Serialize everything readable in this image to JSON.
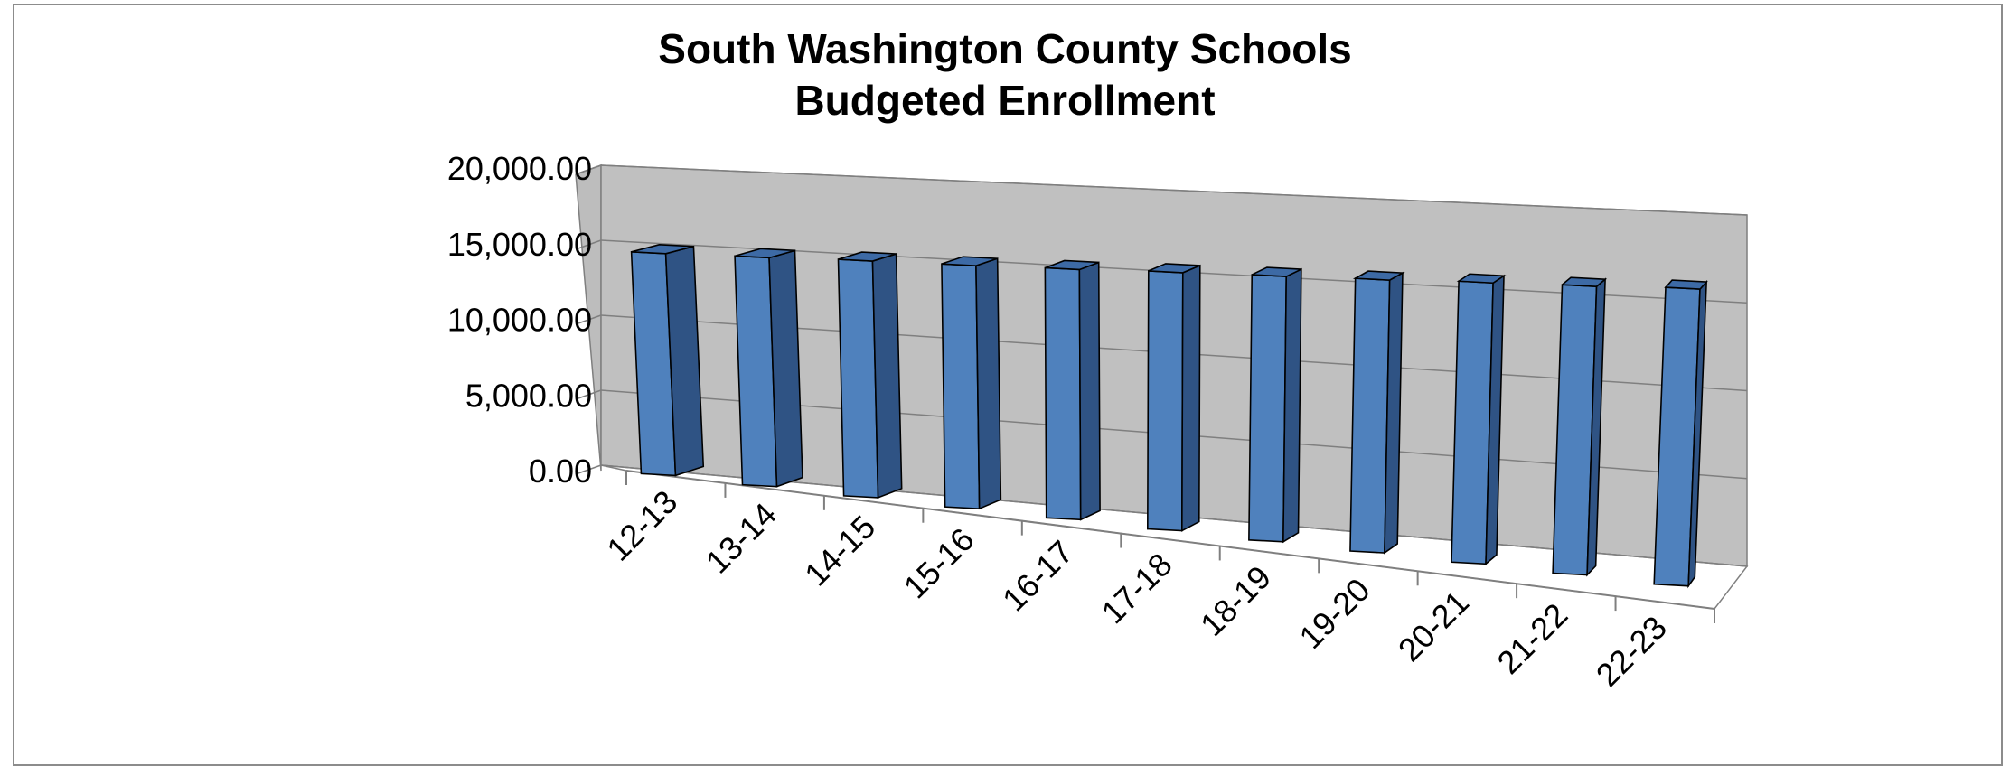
{
  "chart_data": {
    "type": "bar",
    "style": "3d-column",
    "title": [
      "South Washington County Schools",
      "Budgeted Enrollment"
    ],
    "xlabel": "",
    "ylabel": "",
    "categories": [
      "12-13",
      "13-14",
      "14-15",
      "15-16",
      "16-17",
      "17-18",
      "18-19",
      "19-20",
      "20-21",
      "21-22",
      "22-23"
    ],
    "values": [
      17300,
      17400,
      17550,
      17600,
      17700,
      17850,
      17950,
      18050,
      18200,
      18300,
      18450
    ],
    "ylim": [
      0,
      20000
    ],
    "yticks": [
      0,
      5000,
      10000,
      15000,
      20000
    ],
    "ytick_labels": [
      "0.00",
      "5,000.00",
      "10,000.00",
      "15,000.00",
      "20,000.00"
    ],
    "grid": true,
    "legend": "none",
    "colors": {
      "bar_front": "#4f81bd",
      "bar_side": "#2f5384",
      "bar_top": "#3d6aa5",
      "wall": "#c0c0c0",
      "grid": "#7f7f7f"
    }
  }
}
